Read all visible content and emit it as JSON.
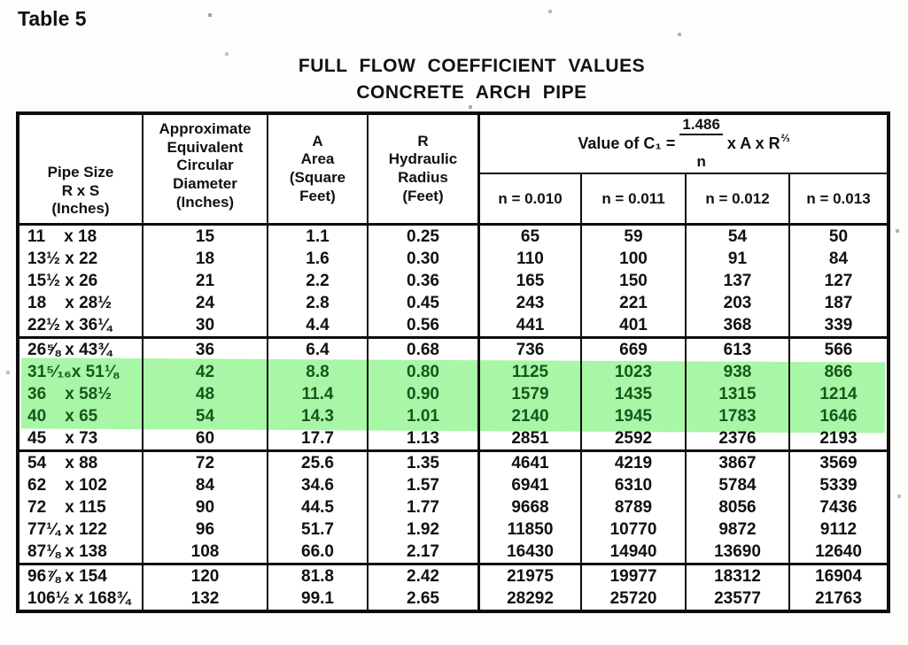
{
  "page": {
    "label": "Table 5"
  },
  "title": {
    "line1": "FULL FLOW COEFFICIENT VALUES",
    "line2": "CONCRETE ARCH PIPE"
  },
  "table": {
    "headers": {
      "pipe_size": "Pipe Size\nR x S\n(Inches)",
      "diameter": "Approximate\nEquivalent\nCircular\nDiameter\n(Inches)",
      "area": "A\nArea\n(Square\nFeet)",
      "radius": "R\nHydraulic\nRadius\n(Feet)",
      "formula": {
        "lhs": "Value of C₁ =",
        "numerator": "1.486",
        "denominator": "n",
        "rhs": "x A x R",
        "exponent": "⅔"
      },
      "n_labels": [
        "n = 0.010",
        "n = 0.011",
        "n = 0.012",
        "n = 0.013"
      ]
    },
    "highlight_color": "#a8f7a6",
    "highlight_text_color": "#17571c",
    "groups": [
      {
        "rows": [
          {
            "size": "11    x 18",
            "dia": "15",
            "area": "1.1",
            "radius": "0.25",
            "n010": "65",
            "n011": "59",
            "n012": "54",
            "n013": "50"
          },
          {
            "size": "13½ x 22",
            "dia": "18",
            "area": "1.6",
            "radius": "0.30",
            "n010": "110",
            "n011": "100",
            "n012": "91",
            "n013": "84"
          },
          {
            "size": "15½ x 26",
            "dia": "21",
            "area": "2.2",
            "radius": "0.36",
            "n010": "165",
            "n011": "150",
            "n012": "137",
            "n013": "127"
          },
          {
            "size": "18    x 28½",
            "dia": "24",
            "area": "2.8",
            "radius": "0.45",
            "n010": "243",
            "n011": "221",
            "n012": "203",
            "n013": "187"
          },
          {
            "size": "22½ x 36¼",
            "dia": "30",
            "area": "4.4",
            "radius": "0.56",
            "n010": "441",
            "n011": "401",
            "n012": "368",
            "n013": "339"
          }
        ]
      },
      {
        "rows": [
          {
            "size": "26⅝ x 43¾",
            "dia": "36",
            "area": "6.4",
            "radius": "0.68",
            "n010": "736",
            "n011": "669",
            "n012": "613",
            "n013": "566"
          },
          {
            "size": "31⁵⁄₁₆x 51⅛",
            "dia": "42",
            "area": "8.8",
            "radius": "0.80",
            "n010": "1125",
            "n011": "1023",
            "n012": "938",
            "n013": "866",
            "highlight": true
          },
          {
            "size": "36    x 58½",
            "dia": "48",
            "area": "11.4",
            "radius": "0.90",
            "n010": "1579",
            "n011": "1435",
            "n012": "1315",
            "n013": "1214",
            "highlight": true
          },
          {
            "size": "40    x 65",
            "dia": "54",
            "area": "14.3",
            "radius": "1.01",
            "n010": "2140",
            "n011": "1945",
            "n012": "1783",
            "n013": "1646",
            "highlight": true
          },
          {
            "size": "45    x 73",
            "dia": "60",
            "area": "17.7",
            "radius": "1.13",
            "n010": "2851",
            "n011": "2592",
            "n012": "2376",
            "n013": "2193"
          }
        ]
      },
      {
        "rows": [
          {
            "size": "54    x 88",
            "dia": "72",
            "area": "25.6",
            "radius": "1.35",
            "n010": "4641",
            "n011": "4219",
            "n012": "3867",
            "n013": "3569"
          },
          {
            "size": "62    x 102",
            "dia": "84",
            "area": "34.6",
            "radius": "1.57",
            "n010": "6941",
            "n011": "6310",
            "n012": "5784",
            "n013": "5339"
          },
          {
            "size": "72    x 115",
            "dia": "90",
            "area": "44.5",
            "radius": "1.77",
            "n010": "9668",
            "n011": "8789",
            "n012": "8056",
            "n013": "7436"
          },
          {
            "size": "77¼ x 122",
            "dia": "96",
            "area": "51.7",
            "radius": "1.92",
            "n010": "11850",
            "n011": "10770",
            "n012": "9872",
            "n013": "9112"
          },
          {
            "size": "87⅛ x 138",
            "dia": "108",
            "area": "66.0",
            "radius": "2.17",
            "n010": "16430",
            "n011": "14940",
            "n012": "13690",
            "n013": "12640"
          }
        ]
      },
      {
        "rows": [
          {
            "size": "96⅞ x 154",
            "dia": "120",
            "area": "81.8",
            "radius": "2.42",
            "n010": "21975",
            "n011": "19977",
            "n012": "18312",
            "n013": "16904"
          },
          {
            "size": "106½ x 168¾",
            "dia": "132",
            "area": "99.1",
            "radius": "2.65",
            "n010": "28292",
            "n011": "25720",
            "n012": "23577",
            "n013": "21763"
          }
        ]
      }
    ]
  }
}
